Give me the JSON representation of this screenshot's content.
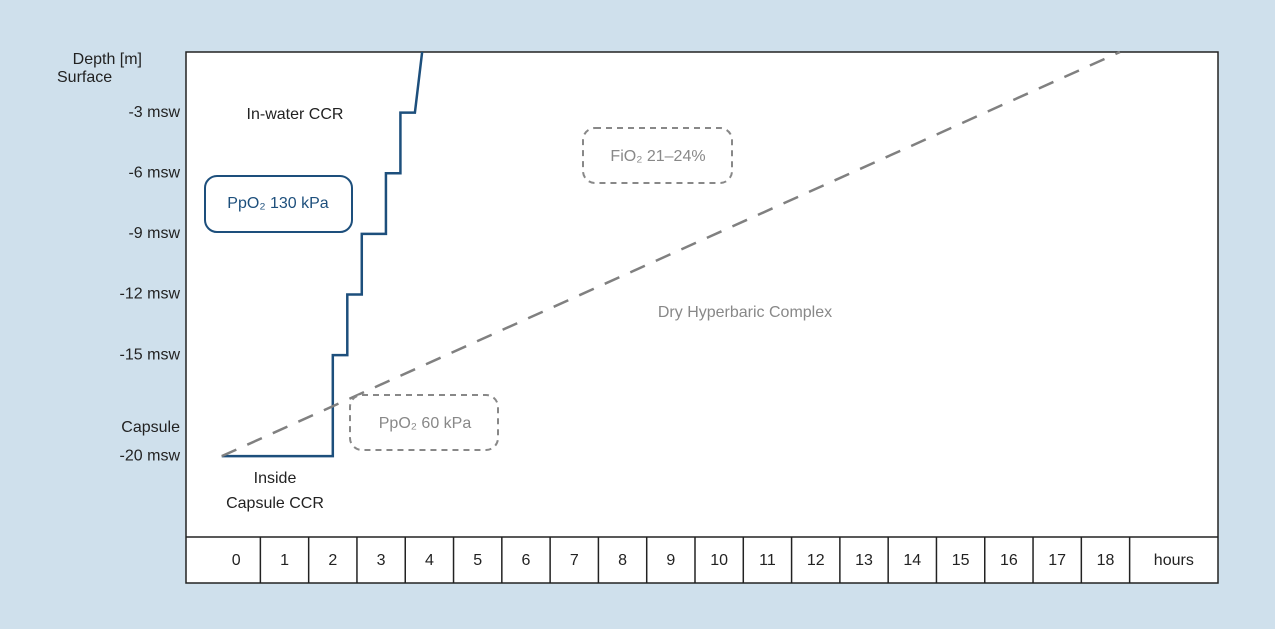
{
  "chart_data": {
    "type": "line",
    "y_label": "Depth [m]",
    "x_label": "hours",
    "xlim": [
      -1.04,
      20.33
    ],
    "ylim": [
      -24,
      0
    ],
    "xticks": [
      0,
      1,
      2,
      3,
      4,
      5,
      6,
      7,
      8,
      9,
      10,
      11,
      12,
      13,
      14,
      15,
      16,
      17,
      18
    ],
    "yticks": [
      {
        "value": 0,
        "label": "Surface"
      },
      {
        "value": -3,
        "label": "-3 msw"
      },
      {
        "value": -6,
        "label": "-6 msw"
      },
      {
        "value": -9,
        "label": "-9 msw"
      },
      {
        "value": -12,
        "label": "-12 msw"
      },
      {
        "value": -15,
        "label": "-15 msw"
      },
      {
        "value": -20,
        "label": "-20 msw"
      }
    ],
    "series": [
      {
        "color": "#1d4f7c",
        "style": "solid",
        "x": [
          -0.3,
          2,
          2,
          2.3,
          2.3,
          2.6,
          2.6,
          3.1,
          3.1,
          3.4,
          3.4,
          3.7,
          3.85
        ],
        "values": [
          -20,
          -20,
          -15,
          -15,
          -12,
          -12,
          -9,
          -9,
          -6,
          -6,
          -3,
          -3,
          0
        ]
      },
      {
        "color": "#808080",
        "style": "dashed",
        "x": [
          -0.3,
          18.3
        ],
        "values": [
          -20,
          0
        ]
      }
    ],
    "annotations": [
      "In-water CCR",
      "PpO₂ 130 kPa",
      "FiO₂ 21–24%",
      "Dry Hyperbaric Complex",
      "PpO₂ 60 kPa",
      "Inside",
      "Capsule CCR",
      "Capsule"
    ]
  }
}
